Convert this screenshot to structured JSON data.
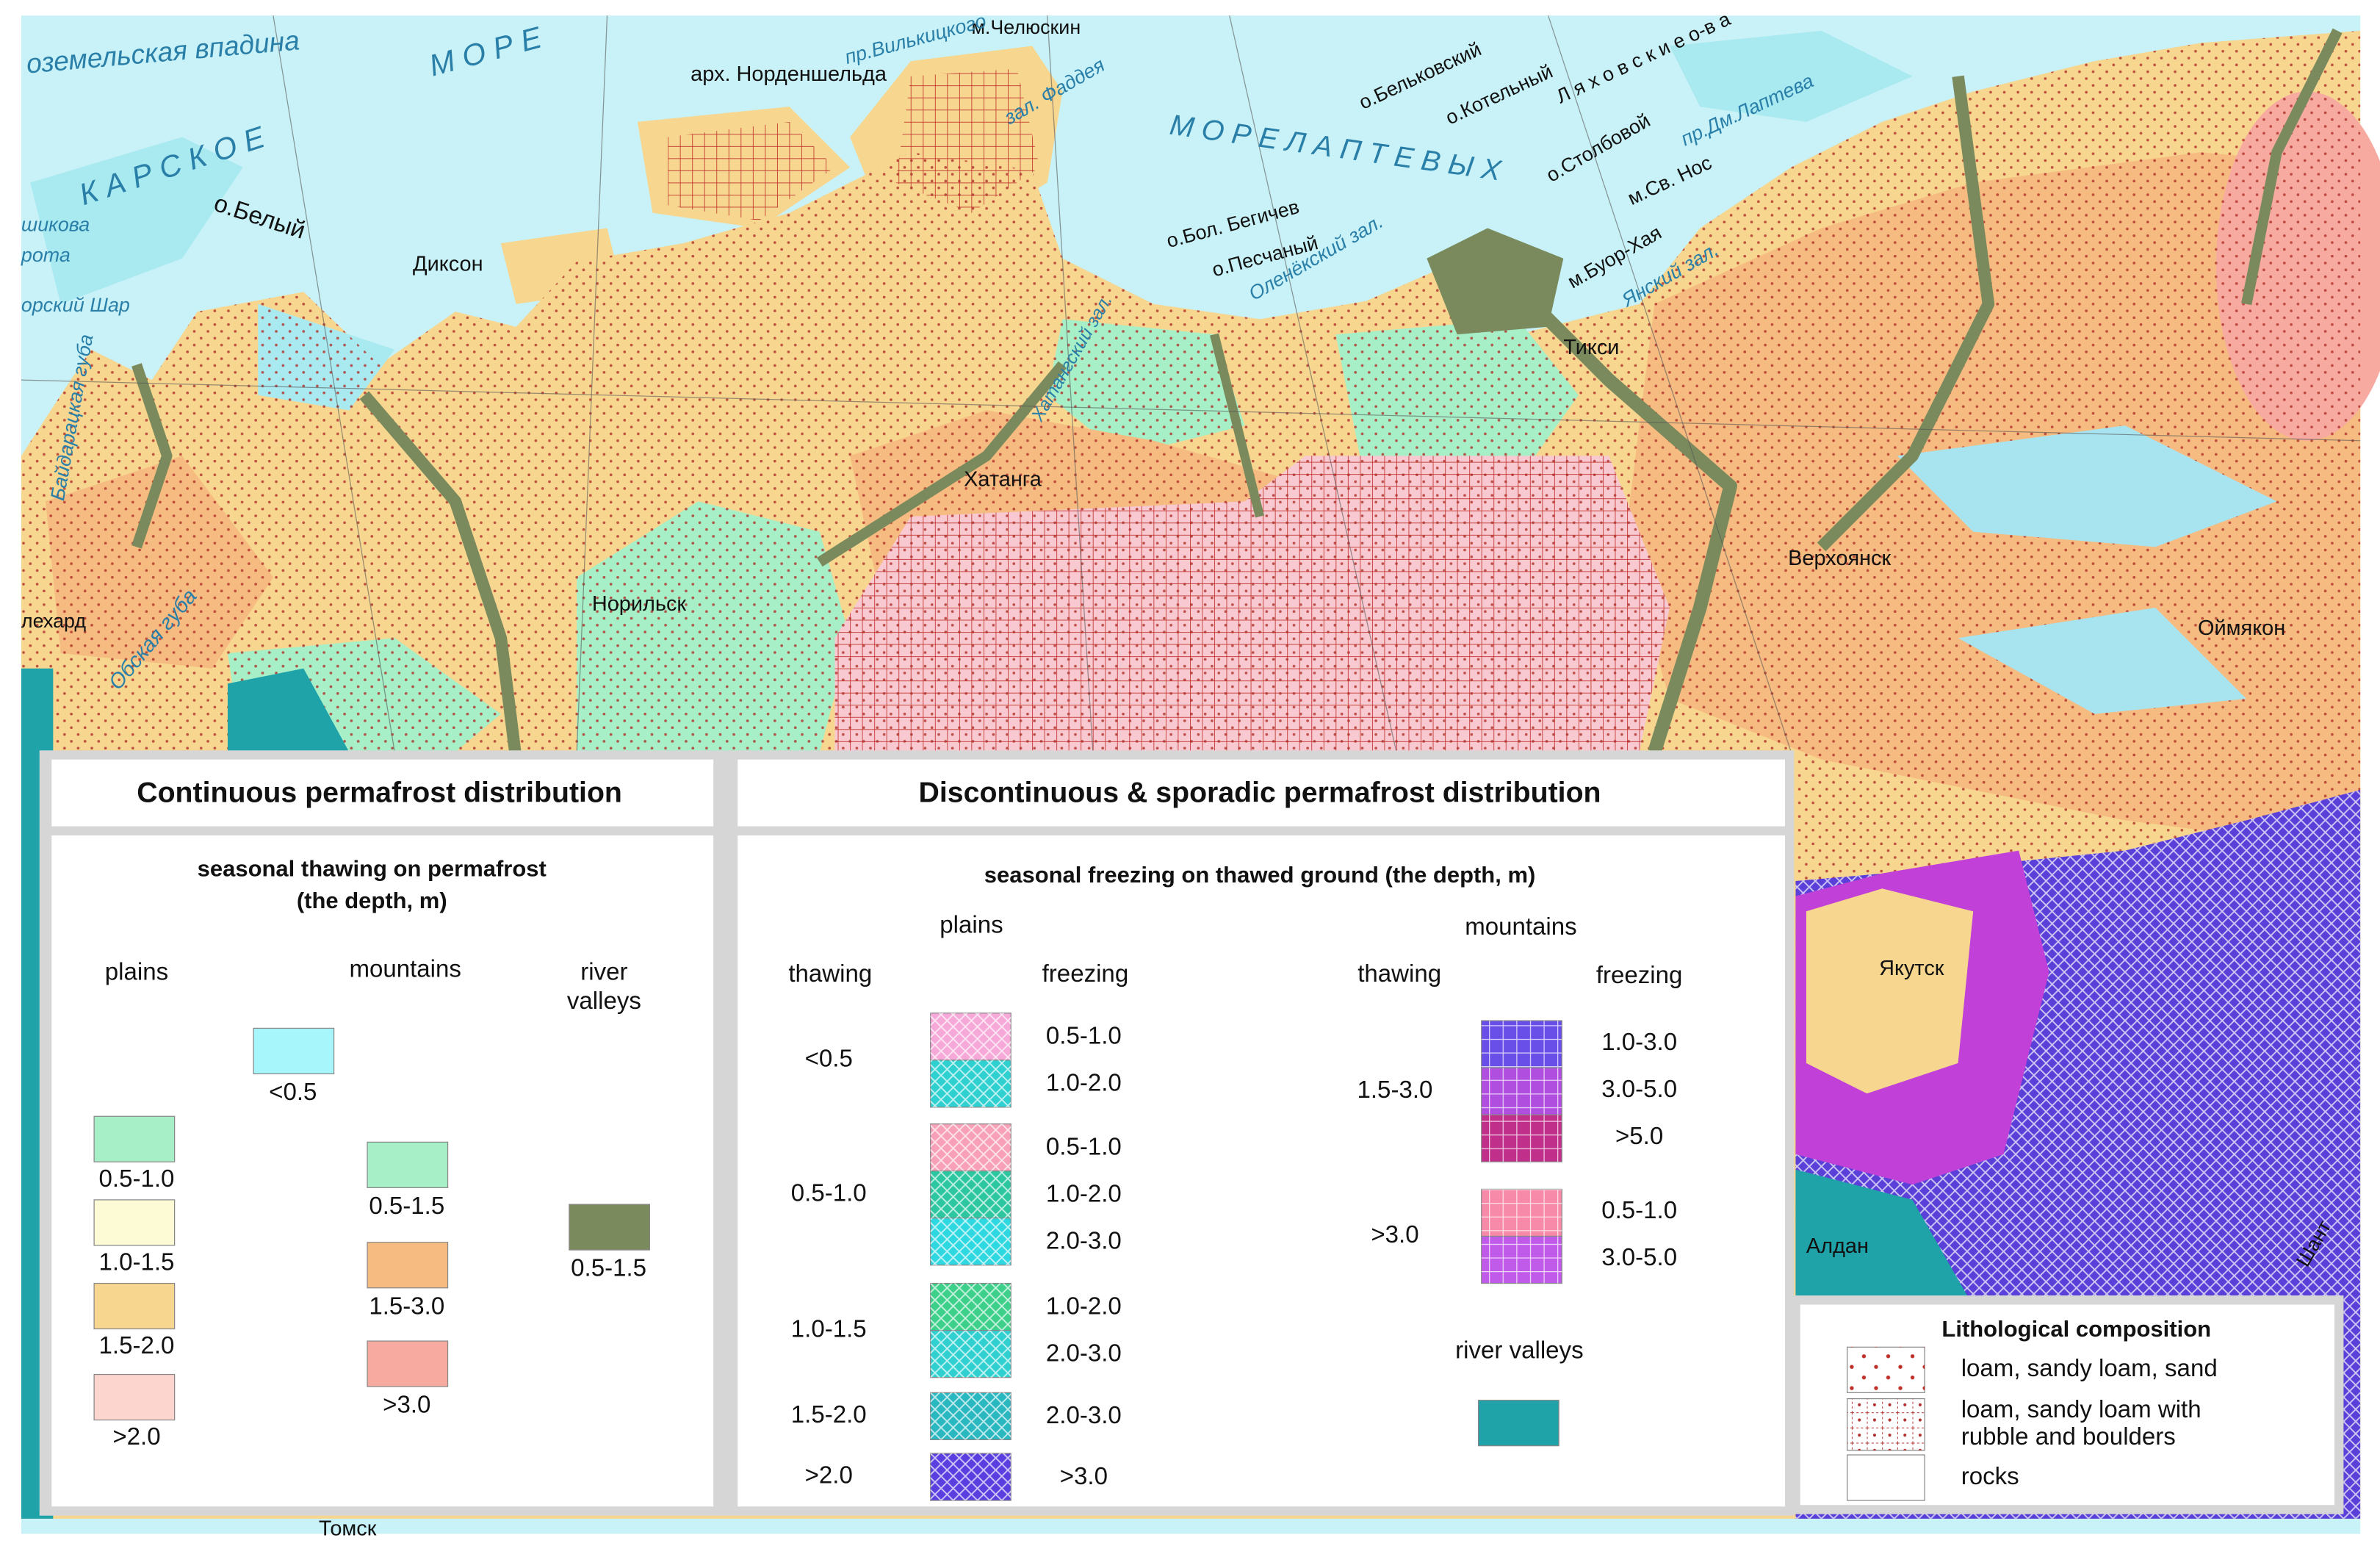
{
  "map": {
    "labels": [
      "оземельская впадина",
      "К А Р С К О Е",
      "М О Р Е",
      "о.Белый",
      "шикова",
      "рота",
      "орский Шар",
      "Диксон",
      "арх. Норденшельда",
      "м.Челюскин",
      "пр.Вилькицкого",
      "зал. Фаддея",
      "М О Р Е   Л А П Т Е В Ы Х",
      "о.Бельковский",
      "о.Котельный",
      "Л я х о в с к и е  о-в а",
      "о.Столбовой",
      "пр.Дм.Лаптева",
      "м.Св. Нос",
      "о.Бол. Бегичев",
      "о.Песчаный",
      "Оленёкский зал.",
      "м.Буор-Хая",
      "Янский зал.",
      "Тикси",
      "Хатангский зал.",
      "Байдарацкая губа",
      "Обская губа",
      "лехард",
      "Хатанга",
      "Норильск",
      "Верхоянск",
      "Оймякон",
      "Якутск",
      "Алдан",
      "Шант",
      "Томск"
    ]
  },
  "legend": {
    "continuous": {
      "title": "Continuous  permafrost distribution",
      "subtitle": [
        "seasonal thawing on permafrost",
        "(the depth, m)"
      ],
      "plains": {
        "header": "plains",
        "items": [
          "0.5-1.0",
          "1.0-1.5",
          "1.5-2.0",
          ">2.0"
        ]
      },
      "mountains": {
        "header": "mountains",
        "items": [
          "<0.5",
          "0.5-1.5",
          "1.5-3.0",
          ">3.0"
        ]
      },
      "river_valleys": {
        "header": [
          "river",
          "valleys"
        ],
        "items": [
          "0.5-1.5"
        ]
      }
    },
    "discontinuous": {
      "title": "Discontinuous  &  sporadic  permafrost distribution",
      "subtitle": "seasonal freezing on thawed ground (the depth, m)",
      "plains": {
        "header": "plains",
        "thawing": "thawing",
        "freezing": "freezing",
        "groups": [
          {
            "thawing": "<0.5",
            "freezing": [
              "0.5-1.0",
              "1.0-2.0"
            ]
          },
          {
            "thawing": "0.5-1.0",
            "freezing": [
              "0.5-1.0",
              "1.0-2.0",
              "2.0-3.0"
            ]
          },
          {
            "thawing": "1.0-1.5",
            "freezing": [
              "1.0-2.0",
              "2.0-3.0"
            ]
          },
          {
            "thawing": "1.5-2.0",
            "freezing": [
              "2.0-3.0"
            ]
          },
          {
            "thawing": ">2.0",
            "freezing": [
              ">3.0"
            ]
          }
        ]
      },
      "mountains": {
        "header": "mountains",
        "thawing": "thawing",
        "freezing": "freezing",
        "groups": [
          {
            "thawing": "1.5-3.0",
            "freezing": [
              "1.0-3.0",
              "3.0-5.0",
              ">5.0"
            ]
          },
          {
            "thawing": ">3.0",
            "freezing": [
              "0.5-1.0",
              "3.0-5.0"
            ]
          }
        ]
      },
      "river_valleys": "river valleys"
    },
    "lithology": {
      "title": "Lithological composition",
      "items": [
        [
          "loam, sandy loam, sand"
        ],
        [
          "loam, sandy loam with",
          "rubble and boulders"
        ],
        [
          "rocks"
        ]
      ]
    }
  }
}
